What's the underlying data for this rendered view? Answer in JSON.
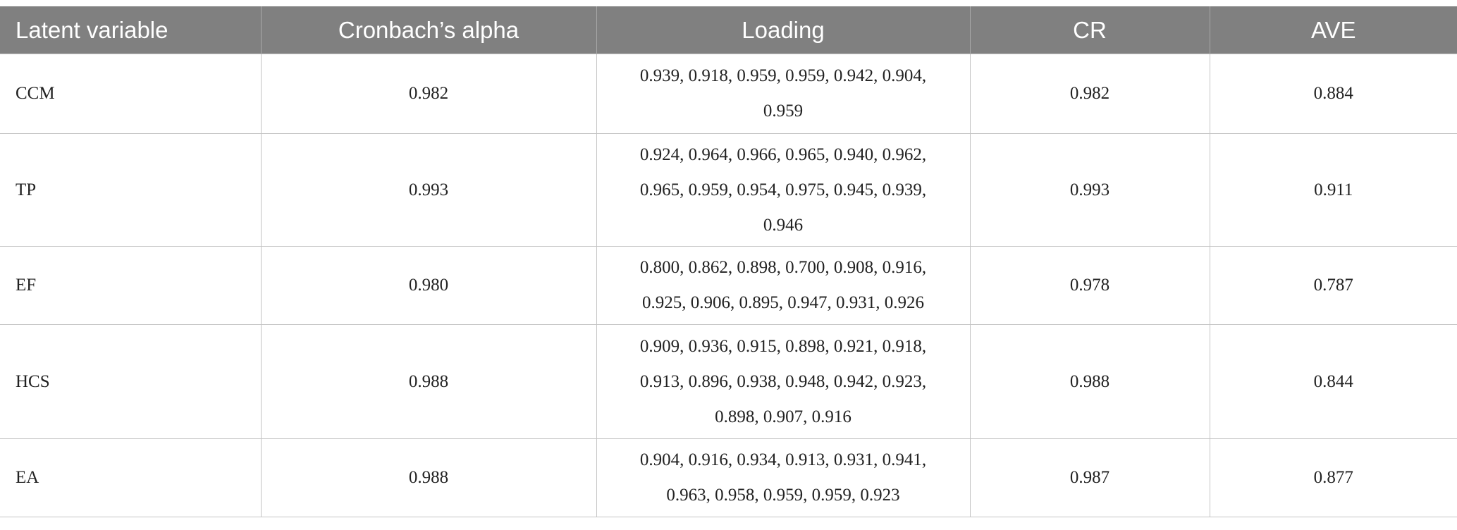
{
  "table": {
    "header": [
      "Latent variable",
      "Cronbach’s alpha",
      "Loading",
      "CR",
      "AVE"
    ],
    "rows": [
      [
        "CCM",
        "0.982",
        [
          "0.939, 0.918, 0.959, 0.959, 0.942, 0.904,",
          "0.959"
        ],
        "0.982",
        "0.884"
      ],
      [
        "TP",
        "0.993",
        [
          "0.924, 0.964, 0.966, 0.965, 0.940, 0.962,",
          "0.965, 0.959, 0.954, 0.975, 0.945, 0.939,",
          "0.946"
        ],
        "0.993",
        "0.911"
      ],
      [
        "EF",
        "0.980",
        [
          "0.800, 0.862, 0.898, 0.700, 0.908, 0.916,",
          "0.925, 0.906, 0.895, 0.947, 0.931, 0.926"
        ],
        "0.978",
        "0.787"
      ],
      [
        "HCS",
        "0.988",
        [
          "0.909, 0.936, 0.915, 0.898, 0.921, 0.918,",
          "0.913, 0.896, 0.938, 0.948, 0.942, 0.923,",
          "0.898, 0.907, 0.916"
        ],
        "0.988",
        "0.844"
      ],
      [
        "EA",
        "0.988",
        [
          "0.904, 0.916, 0.934, 0.913, 0.931, 0.941,",
          "0.963, 0.958, 0.959, 0.959, 0.923"
        ],
        "0.987",
        "0.877"
      ]
    ]
  }
}
